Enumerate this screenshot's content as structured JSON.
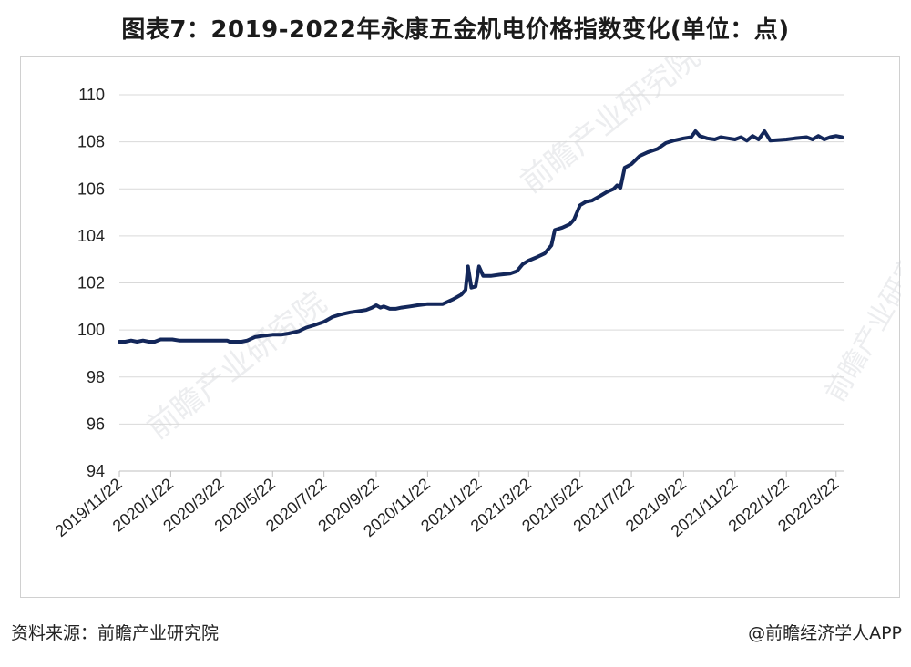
{
  "title": "图表7：2019-2022年永康五金机电价格指数变化(单位：点)",
  "source": "资料来源：前瞻产业研究院",
  "credit": "@前瞻经济学人APP",
  "watermark": "前瞻产业研究院",
  "colors": {
    "line": "#13275a",
    "grid": "#d9d9d9"
  },
  "chart_data": {
    "type": "line",
    "title": "图表7：2019-2022年永康五金机电价格指数变化(单位：点)",
    "xlabel": "",
    "ylabel": "",
    "ylim": [
      94,
      110
    ],
    "yticks": [
      94,
      96,
      98,
      100,
      102,
      104,
      106,
      108,
      110
    ],
    "xlim": [
      "2019-11-22",
      "2022-04-01"
    ],
    "xticks": [
      "2019/11/22",
      "2020/1/22",
      "2020/3/22",
      "2020/5/22",
      "2020/7/22",
      "2020/9/22",
      "2020/11/22",
      "2021/1/22",
      "2021/3/22",
      "2021/5/22",
      "2021/7/22",
      "2021/9/22",
      "2021/11/22",
      "2022/1/22",
      "2022/3/22"
    ],
    "grid": "horizontal",
    "legend": "none",
    "series": [
      {
        "points": [
          [
            "2019-11-22",
            99.5
          ],
          [
            "2019-11-29",
            99.5
          ],
          [
            "2019-12-06",
            99.55
          ],
          [
            "2019-12-13",
            99.5
          ],
          [
            "2019-12-20",
            99.55
          ],
          [
            "2019-12-27",
            99.5
          ],
          [
            "2020-01-03",
            99.5
          ],
          [
            "2020-01-10",
            99.6
          ],
          [
            "2020-01-17",
            99.6
          ],
          [
            "2020-01-24",
            99.6
          ],
          [
            "2020-02-01",
            99.55
          ],
          [
            "2020-02-15",
            99.55
          ],
          [
            "2020-03-01",
            99.55
          ],
          [
            "2020-03-15",
            99.55
          ],
          [
            "2020-03-29",
            99.55
          ],
          [
            "2020-04-01",
            99.5
          ],
          [
            "2020-04-15",
            99.5
          ],
          [
            "2020-04-22",
            99.55
          ],
          [
            "2020-05-01",
            99.7
          ],
          [
            "2020-05-10",
            99.75
          ],
          [
            "2020-05-22",
            99.8
          ],
          [
            "2020-06-01",
            99.8
          ],
          [
            "2020-06-10",
            99.85
          ],
          [
            "2020-06-22",
            99.95
          ],
          [
            "2020-07-01",
            100.1
          ],
          [
            "2020-07-10",
            100.2
          ],
          [
            "2020-07-22",
            100.35
          ],
          [
            "2020-08-01",
            100.55
          ],
          [
            "2020-08-10",
            100.65
          ],
          [
            "2020-08-22",
            100.75
          ],
          [
            "2020-09-01",
            100.8
          ],
          [
            "2020-09-10",
            100.85
          ],
          [
            "2020-09-17",
            100.95
          ],
          [
            "2020-09-22",
            101.05
          ],
          [
            "2020-09-27",
            100.95
          ],
          [
            "2020-10-01",
            101.0
          ],
          [
            "2020-10-08",
            100.9
          ],
          [
            "2020-10-15",
            100.9
          ],
          [
            "2020-10-22",
            100.95
          ],
          [
            "2020-11-01",
            101.0
          ],
          [
            "2020-11-10",
            101.05
          ],
          [
            "2020-11-22",
            101.1
          ],
          [
            "2020-12-01",
            101.1
          ],
          [
            "2020-12-10",
            101.1
          ],
          [
            "2020-12-22",
            101.3
          ],
          [
            "2021-01-01",
            101.5
          ],
          [
            "2021-01-06",
            101.7
          ],
          [
            "2021-01-09",
            102.7
          ],
          [
            "2021-01-13",
            101.8
          ],
          [
            "2021-01-18",
            101.85
          ],
          [
            "2021-01-22",
            102.7
          ],
          [
            "2021-01-27",
            102.3
          ],
          [
            "2021-02-05",
            102.3
          ],
          [
            "2021-02-15",
            102.35
          ],
          [
            "2021-02-28",
            102.4
          ],
          [
            "2021-03-08",
            102.5
          ],
          [
            "2021-03-15",
            102.8
          ],
          [
            "2021-03-22",
            102.95
          ],
          [
            "2021-04-01",
            103.1
          ],
          [
            "2021-04-10",
            103.25
          ],
          [
            "2021-04-18",
            103.6
          ],
          [
            "2021-04-22",
            104.25
          ],
          [
            "2021-05-01",
            104.35
          ],
          [
            "2021-05-10",
            104.5
          ],
          [
            "2021-05-15",
            104.7
          ],
          [
            "2021-05-22",
            105.3
          ],
          [
            "2021-05-29",
            105.45
          ],
          [
            "2021-06-05",
            105.5
          ],
          [
            "2021-06-15",
            105.7
          ],
          [
            "2021-06-22",
            105.85
          ],
          [
            "2021-07-01",
            106.0
          ],
          [
            "2021-07-05",
            106.15
          ],
          [
            "2021-07-09",
            106.05
          ],
          [
            "2021-07-14",
            106.9
          ],
          [
            "2021-07-22",
            107.05
          ],
          [
            "2021-08-01",
            107.4
          ],
          [
            "2021-08-10",
            107.55
          ],
          [
            "2021-08-22",
            107.7
          ],
          [
            "2021-09-01",
            107.95
          ],
          [
            "2021-09-10",
            108.05
          ],
          [
            "2021-09-22",
            108.15
          ],
          [
            "2021-10-01",
            108.2
          ],
          [
            "2021-10-06",
            108.45
          ],
          [
            "2021-10-11",
            108.25
          ],
          [
            "2021-10-20",
            108.15
          ],
          [
            "2021-10-29",
            108.1
          ],
          [
            "2021-11-05",
            108.2
          ],
          [
            "2021-11-14",
            108.15
          ],
          [
            "2021-11-22",
            108.1
          ],
          [
            "2021-11-29",
            108.2
          ],
          [
            "2021-12-06",
            108.05
          ],
          [
            "2021-12-13",
            108.25
          ],
          [
            "2021-12-20",
            108.1
          ],
          [
            "2021-12-27",
            108.45
          ],
          [
            "2022-01-03",
            108.05
          ],
          [
            "2022-01-22",
            108.1
          ],
          [
            "2022-02-01",
            108.15
          ],
          [
            "2022-02-15",
            108.2
          ],
          [
            "2022-02-22",
            108.1
          ],
          [
            "2022-03-01",
            108.25
          ],
          [
            "2022-03-08",
            108.1
          ],
          [
            "2022-03-15",
            108.2
          ],
          [
            "2022-03-22",
            108.25
          ],
          [
            "2022-03-29",
            108.2
          ]
        ]
      }
    ]
  }
}
